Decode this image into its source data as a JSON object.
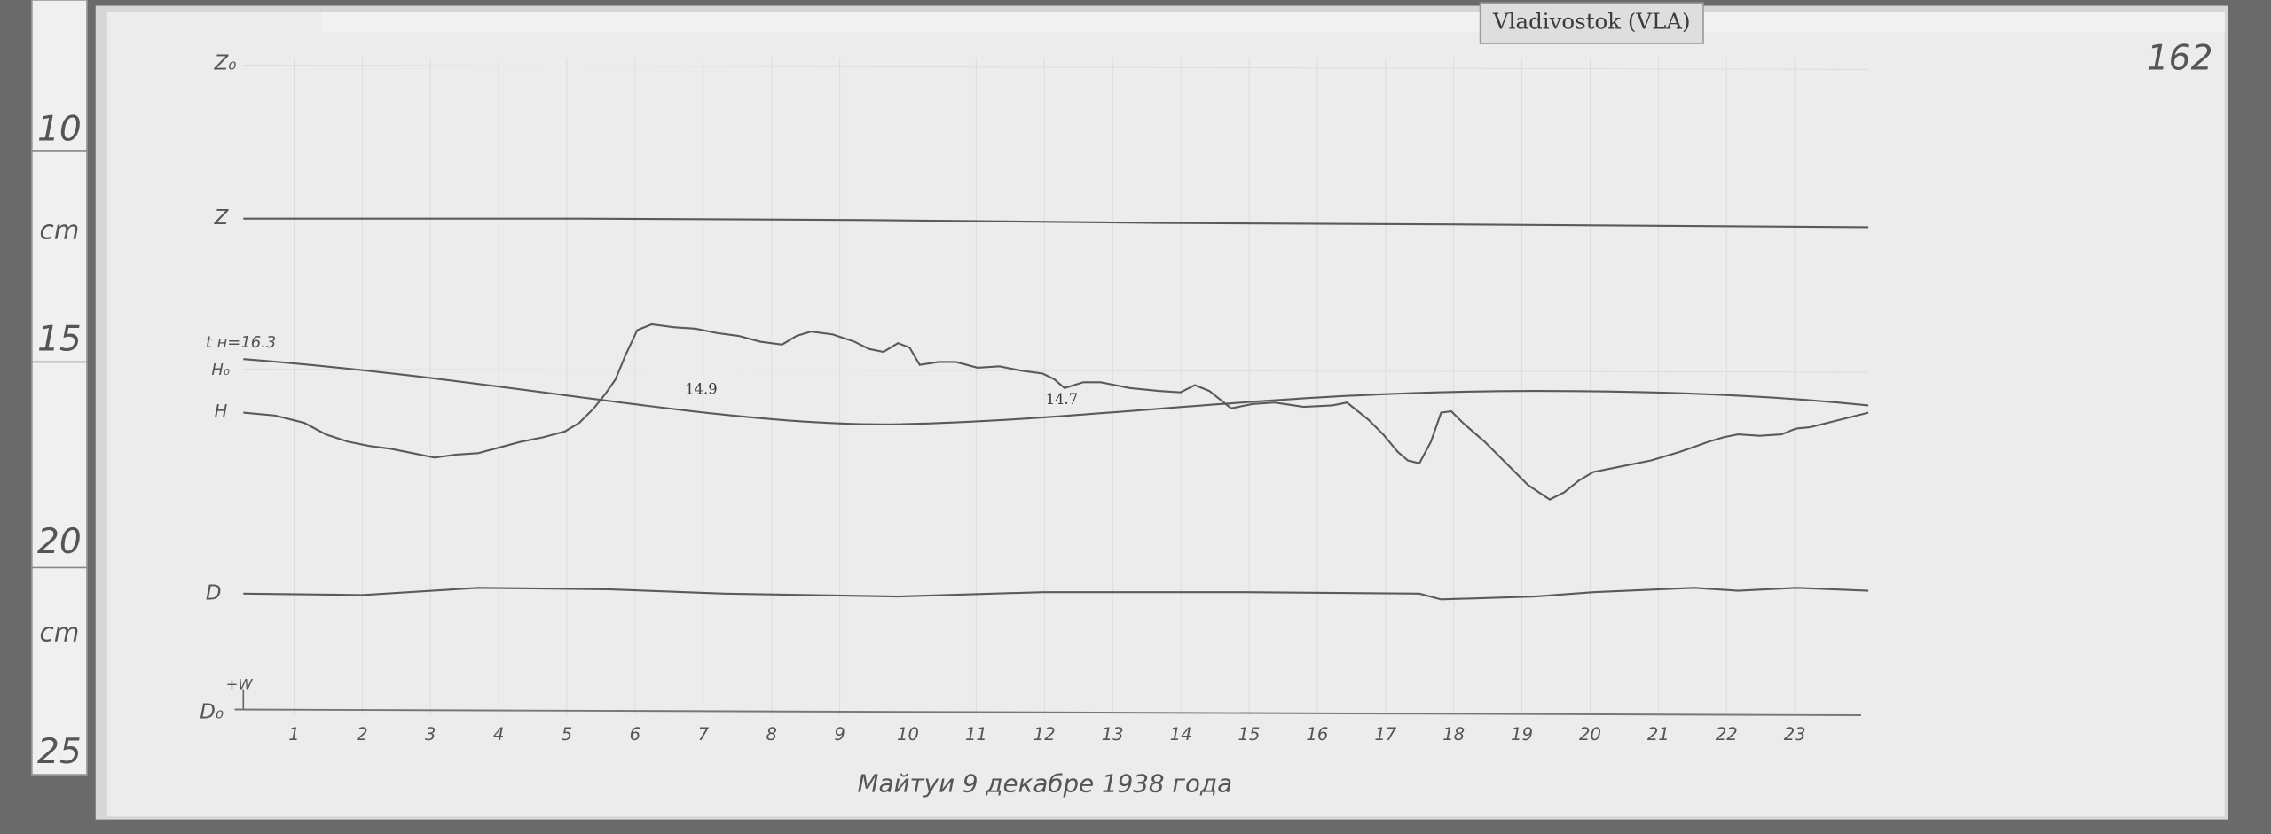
{
  "station": "Vladivostok (VLA)",
  "sheet_number": "162",
  "ruler": {
    "labels": [
      "10",
      "cm",
      "15",
      "20",
      "cm",
      "25"
    ]
  },
  "traces": {
    "z0": "Z₀",
    "z": "Z",
    "t": "t н=16.3",
    "h0": "H₀",
    "h": "H",
    "d": "D",
    "d0": "D₀",
    "w": "+W"
  },
  "annotations": [
    "14.9",
    "14.7"
  ],
  "hours": [
    "1",
    "2",
    "3",
    "4",
    "5",
    "6",
    "7",
    "8",
    "9",
    "10",
    "11",
    "12",
    "13",
    "14",
    "15",
    "16",
    "17",
    "18",
    "19",
    "20",
    "21",
    "22",
    "23"
  ],
  "caption": "Майтуи 9 декабре 1938 года"
}
